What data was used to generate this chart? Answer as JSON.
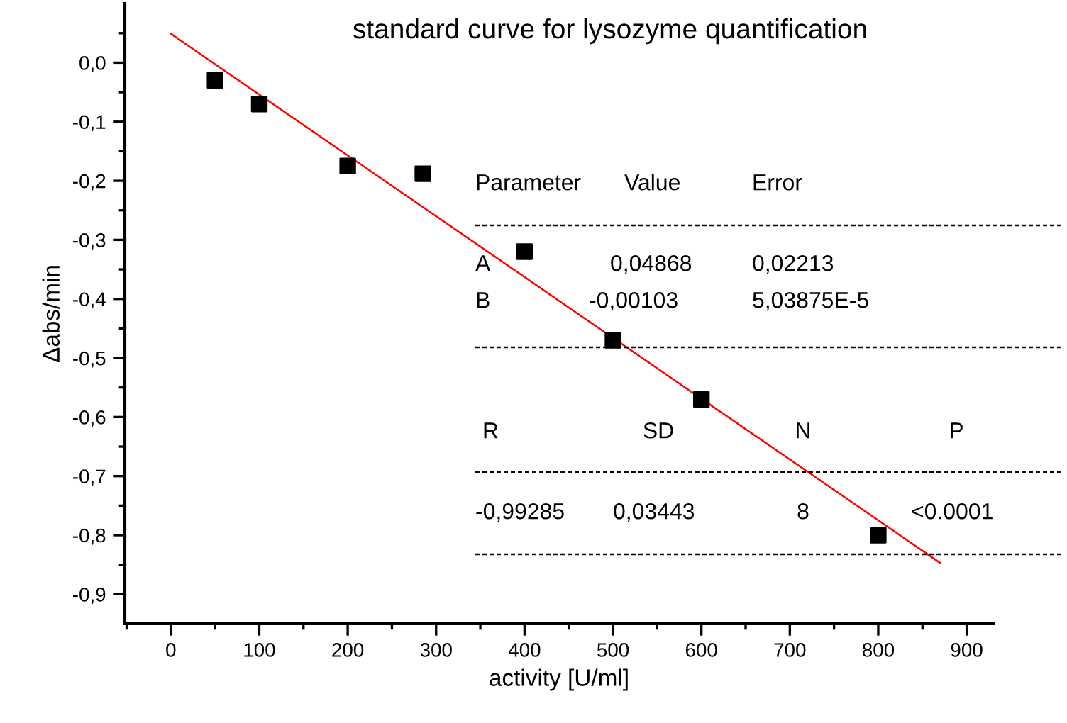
{
  "chart_data": {
    "type": "scatter",
    "title": "standard curve for lysozyme quantification",
    "xlabel": "activity [U/ml]",
    "ylabel": "Δabs/min",
    "series": [
      {
        "type": "scatter",
        "color": "#000000",
        "marker": "square",
        "x": [
          50,
          100,
          200,
          285,
          400,
          500,
          600,
          800
        ],
        "values": [
          -0.03,
          -0.07,
          -0.175,
          -0.188,
          -0.32,
          -0.47,
          -0.57,
          -0.8
        ]
      },
      {
        "type": "line",
        "color": "#ff0000",
        "marker": "none",
        "line_style": "solid",
        "x": [
          0,
          870
        ],
        "values": [
          0.049,
          -0.847
        ]
      }
    ],
    "xlim": [
      -52,
      930
    ],
    "ylim": [
      -0.95,
      0.1
    ],
    "xticks": [
      {
        "value": -50,
        "label": null
      },
      0,
      {
        "value": 50,
        "label": null
      },
      100,
      {
        "value": 150,
        "label": null
      },
      200,
      {
        "value": 250,
        "label": null
      },
      300,
      {
        "value": 350,
        "label": null
      },
      400,
      {
        "value": 450,
        "label": null
      },
      500,
      {
        "value": 550,
        "label": null
      },
      600,
      {
        "value": 650,
        "label": null
      },
      700,
      {
        "value": 750,
        "label": null
      },
      800,
      {
        "value": 850,
        "label": null
      },
      900
    ],
    "yticks": [
      {
        "value": 0.05,
        "label": null
      },
      {
        "value": 0.0,
        "label": "0,0"
      },
      {
        "value": -0.05,
        "label": null
      },
      {
        "value": -0.1,
        "label": "-0,1"
      },
      {
        "value": -0.15,
        "label": null
      },
      {
        "value": -0.2,
        "label": "-0,2"
      },
      {
        "value": -0.25,
        "label": null
      },
      {
        "value": -0.3,
        "label": "-0,3"
      },
      {
        "value": -0.35,
        "label": null
      },
      {
        "value": -0.4,
        "label": "-0,4"
      },
      {
        "value": -0.45,
        "label": null
      },
      {
        "value": -0.5,
        "label": "-0,5"
      },
      {
        "value": -0.55,
        "label": null
      },
      {
        "value": -0.6,
        "label": "-0,6"
      },
      {
        "value": -0.65,
        "label": null
      },
      {
        "value": -0.7,
        "label": "-0,7"
      },
      {
        "value": -0.75,
        "label": null
      },
      {
        "value": -0.8,
        "label": "-0,8"
      },
      {
        "value": -0.85,
        "label": null
      },
      {
        "value": -0.9,
        "label": "-0,9"
      }
    ],
    "grid": false,
    "legend": false,
    "annotations": [
      "Parameter",
      "Value",
      "Error",
      "A",
      "0,04868",
      "0,02213",
      "B",
      "-0,00103",
      "5,03875E-5",
      "R",
      "SD",
      "N",
      "P",
      "-0,99285",
      "0,03443",
      "8",
      "<0.0001"
    ]
  }
}
